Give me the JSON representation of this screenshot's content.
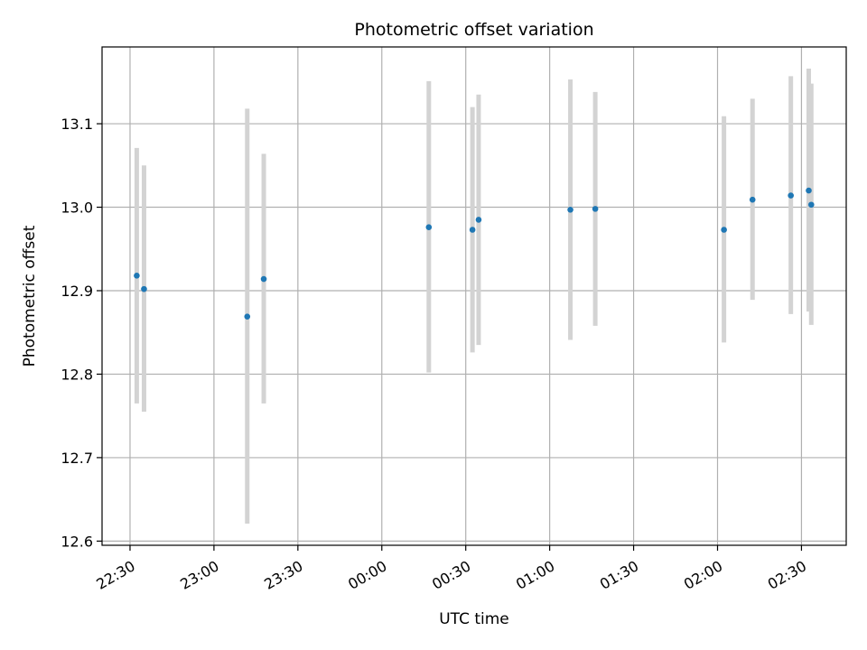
{
  "chart_data": {
    "type": "scatter",
    "title": "Photometric offset variation",
    "xlabel": "UTC time",
    "ylabel": "Photometric offset",
    "grid": true,
    "legend": "none",
    "x_ticks": [
      "22:30",
      "23:00",
      "23:30",
      "00:00",
      "00:30",
      "01:00",
      "01:30",
      "02:00",
      "02:30"
    ],
    "x_tick_minutes": [
      1350,
      1380,
      1410,
      1440,
      1470,
      1500,
      1530,
      1560,
      1590
    ],
    "xlim_minutes": [
      1340,
      1606
    ],
    "y_ticks": [
      "12.6",
      "12.7",
      "12.8",
      "12.9",
      "13.0",
      "13.1"
    ],
    "ylim": [
      12.595,
      13.192
    ],
    "point_color": "#1f77b4",
    "errorbar_color": "#d3d3d3",
    "series": [
      {
        "points": [
          {
            "t_minutes": 1352.4,
            "y": 12.918,
            "yerr_low": 12.765,
            "yerr_high": 13.071
          },
          {
            "t_minutes": 1355.0,
            "y": 12.902,
            "yerr_low": 12.755,
            "yerr_high": 13.05
          },
          {
            "t_minutes": 1391.9,
            "y": 12.869,
            "yerr_low": 12.621,
            "yerr_high": 13.118
          },
          {
            "t_minutes": 1397.8,
            "y": 12.914,
            "yerr_low": 12.765,
            "yerr_high": 13.064
          },
          {
            "t_minutes": 1456.8,
            "y": 12.976,
            "yerr_low": 12.802,
            "yerr_high": 13.151
          },
          {
            "t_minutes": 1472.4,
            "y": 12.973,
            "yerr_low": 12.826,
            "yerr_high": 13.12
          },
          {
            "t_minutes": 1474.6,
            "y": 12.985,
            "yerr_low": 12.835,
            "yerr_high": 13.135
          },
          {
            "t_minutes": 1507.4,
            "y": 12.997,
            "yerr_low": 12.841,
            "yerr_high": 13.153
          },
          {
            "t_minutes": 1516.3,
            "y": 12.998,
            "yerr_low": 12.858,
            "yerr_high": 13.138
          },
          {
            "t_minutes": 1562.3,
            "y": 12.973,
            "yerr_low": 12.838,
            "yerr_high": 13.109
          },
          {
            "t_minutes": 1572.5,
            "y": 13.009,
            "yerr_low": 12.889,
            "yerr_high": 13.13
          },
          {
            "t_minutes": 1586.2,
            "y": 13.014,
            "yerr_low": 12.872,
            "yerr_high": 13.157
          },
          {
            "t_minutes": 1592.6,
            "y": 13.02,
            "yerr_low": 12.875,
            "yerr_high": 13.166
          },
          {
            "t_minutes": 1593.5,
            "y": 13.003,
            "yerr_low": 12.859,
            "yerr_high": 13.148
          }
        ]
      }
    ]
  }
}
